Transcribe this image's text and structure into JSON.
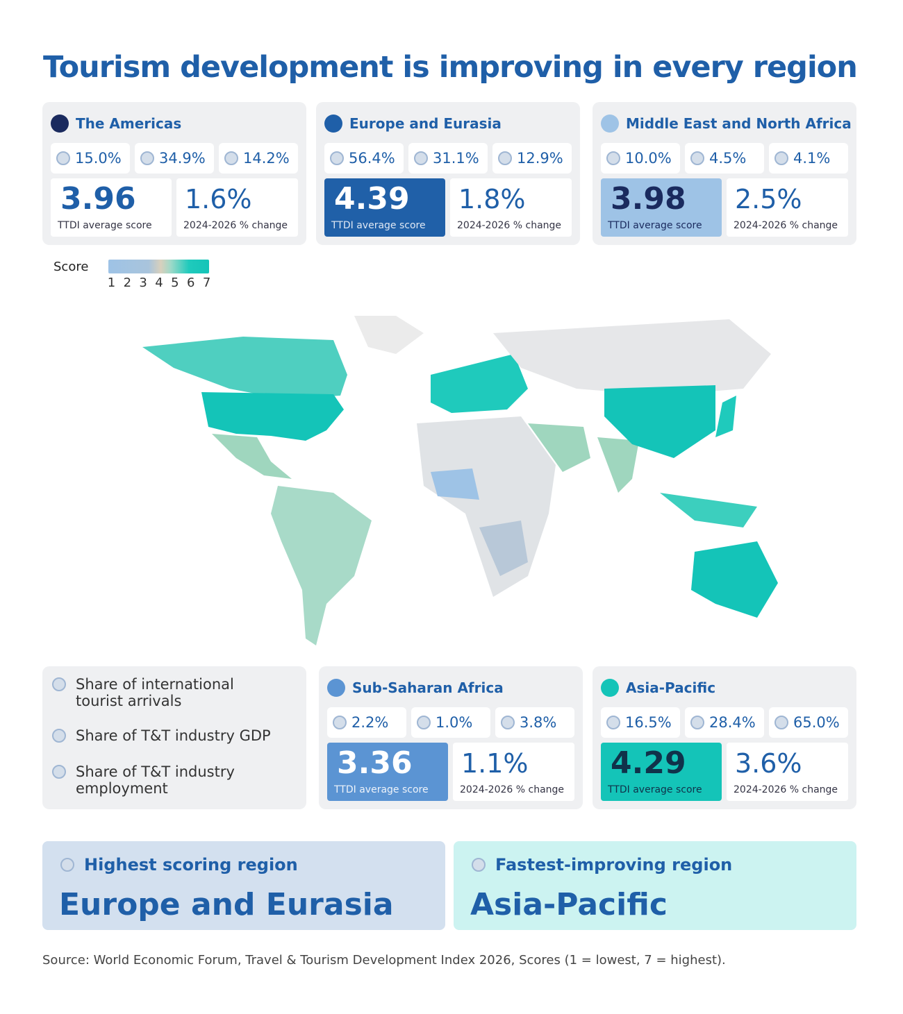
{
  "title": "Tourism development is improving in every region",
  "regions": [
    {
      "name": "The Americas",
      "stats": [
        "15.0%",
        "34.9%",
        "14.2%"
      ],
      "score": 3.96,
      "score_label": "TTDI average score",
      "change": "1.6%",
      "change_label": "2024-2026 % change"
    },
    {
      "name": "Europe and Eurasia",
      "stats": [
        "56.4%",
        "31.1%",
        "12.9%"
      ],
      "score": 4.39,
      "score_label": "TTDI average score",
      "change": "1.8%",
      "change_label": "2024-2026 % change"
    },
    {
      "name": "Middle East and North Africa",
      "stats": [
        "10.0%",
        "4.5%",
        "4.1%"
      ],
      "score": 3.98,
      "score_label": "TTDI average score",
      "change": "2.5%",
      "change_label": "2024-2026 % change"
    },
    {
      "name": "Sub-Saharan Africa",
      "stats": [
        "2.2%",
        "1.0%",
        "3.8%"
      ],
      "score": 3.36,
      "score_label": "TTDI average score",
      "change": "1.1%",
      "change_label": "2024-2026 % change"
    },
    {
      "name": "Asia-Pacific",
      "stats": [
        "16.5%",
        "28.4%",
        "65.0%"
      ],
      "score": 4.29,
      "score_label": "TTDI average score",
      "change": "3.6%",
      "change_label": "2024-2026 % change"
    }
  ],
  "legend": {
    "label": "Score",
    "ticks": [
      1,
      2,
      3,
      4,
      5,
      6,
      7
    ]
  },
  "key": [
    "Share of international tourist arrivals",
    "Share of T&T industry GDP",
    "Share of T&T industry employment"
  ],
  "highlights": [
    {
      "label": "Highest scoring region",
      "value": "Europe and Eurasia"
    },
    {
      "label": "Fastest-improving region",
      "value": "Asia-Pacific"
    }
  ],
  "source": "Source: World Economic Forum, Travel & Tourism Development Index 2026, Scores (1 = lowest, 7 = highest)."
}
